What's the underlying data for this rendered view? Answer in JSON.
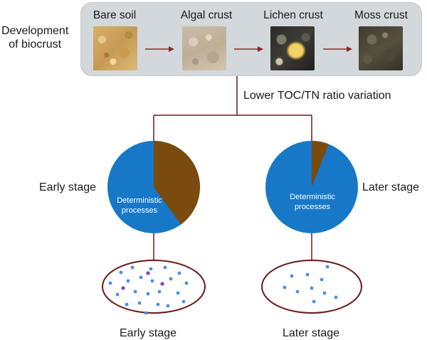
{
  "development_label_line1": "Development",
  "development_label_line2": "of biocrust",
  "stages": [
    {
      "title": "Bare soil",
      "photo": "bare-soil-photo"
    },
    {
      "title": "Algal crust",
      "photo": "algal-crust-photo"
    },
    {
      "title": "Lichen crust",
      "photo": "lichen-crust-photo"
    },
    {
      "title": "Moss crust",
      "photo": "moss-crust-photo"
    }
  ],
  "ratio_label": "Lower TOC/TN ratio variation",
  "early": {
    "side_label": "Early stage",
    "pie_label_line1": "Deterministic",
    "pie_label_line2": "processes",
    "deterministic_fraction": 0.6,
    "bottom_label": "Early stage"
  },
  "later": {
    "side_label": "Later stage",
    "pie_label_line1": "Deterministic",
    "pie_label_line2": "processes",
    "deterministic_fraction": 0.94,
    "bottom_label": "Later stage"
  },
  "colors": {
    "panel": "#d3d8dc",
    "arrow": "#8a2a2a",
    "deterministic": "#1878c8",
    "other": "#7a4a0e",
    "line": "#6a1a1a",
    "dot_blue": "#4a90e2",
    "dot_purple": "#8a3fbf"
  }
}
